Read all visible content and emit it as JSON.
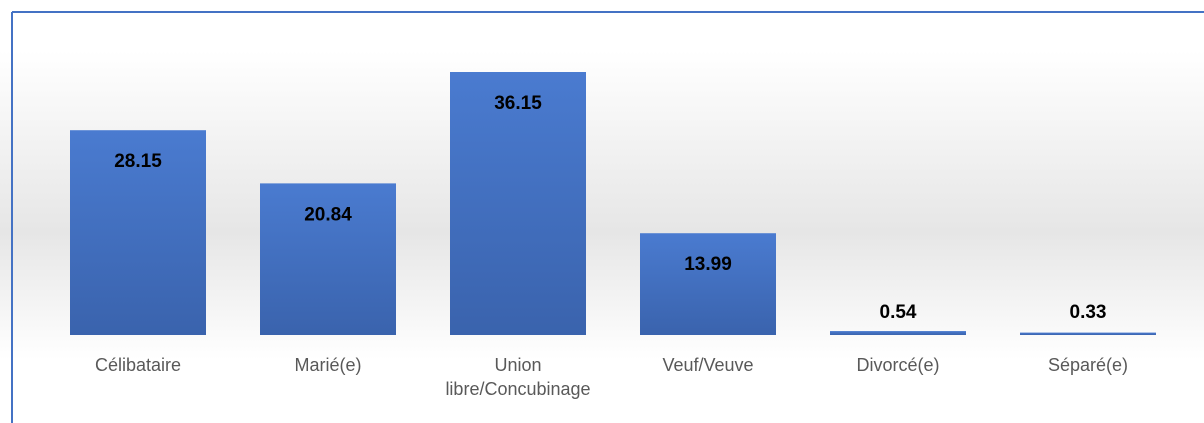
{
  "chart_data": {
    "type": "bar",
    "categories": [
      "Célibataire",
      "Marié(e)",
      "Union libre/Concubinage",
      "Veuf/Veuve",
      "Divorcé(e)",
      "Séparé(e)"
    ],
    "values": [
      28.15,
      20.84,
      36.15,
      13.99,
      0.54,
      0.33
    ],
    "color": "#4472c4",
    "ylim": [
      0,
      40
    ]
  }
}
